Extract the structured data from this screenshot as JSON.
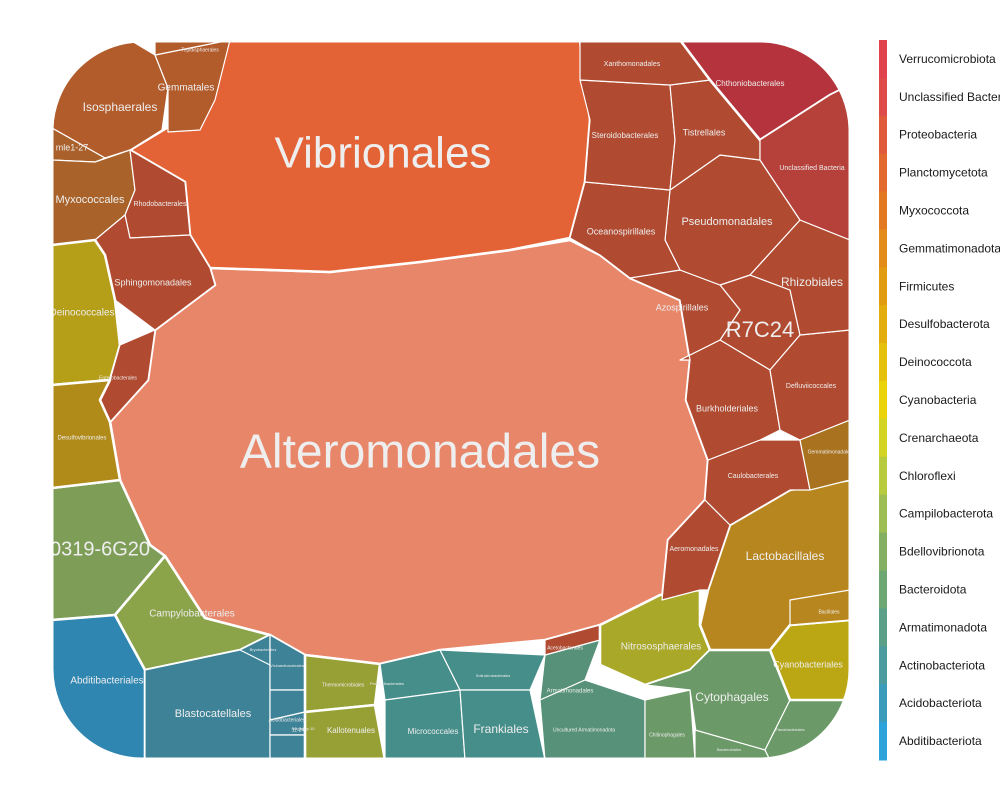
{
  "chart_data": {
    "type": "voronoi-treemap",
    "title": "",
    "legend": {
      "placement": "right",
      "entries": [
        {
          "label": "Verrucomicrobiota",
          "color": "#e0424e"
        },
        {
          "label": "Unclassified Bacteria",
          "color": "#df4b48"
        },
        {
          "label": "Proteobacteria",
          "color": "#e05a3c"
        },
        {
          "label": "Planctomycetota",
          "color": "#e36a2e"
        },
        {
          "label": "Myxococcota",
          "color": "#e37a22"
        },
        {
          "label": "Gemmatimonadota",
          "color": "#e38c1a"
        },
        {
          "label": "Firmicutes",
          "color": "#e29c12"
        },
        {
          "label": "Desulfobacterota",
          "color": "#e3ad0d"
        },
        {
          "label": "Deinococcota",
          "color": "#e6c10b"
        },
        {
          "label": "Cyanobacteria",
          "color": "#ebd30a"
        },
        {
          "label": "Crenarchaeota",
          "color": "#d3d423"
        },
        {
          "label": "Chloroflexi",
          "color": "#b8cb3e"
        },
        {
          "label": "Campilobacterota",
          "color": "#9cbe52"
        },
        {
          "label": "Bdellovibrionota",
          "color": "#83b063"
        },
        {
          "label": "Bacteroidota",
          "color": "#6da873"
        },
        {
          "label": "Armatimonadota",
          "color": "#5c9f88"
        },
        {
          "label": "Actinobacteriota",
          "color": "#4c9b9f"
        },
        {
          "label": "Acidobacteriota",
          "color": "#3a9bba"
        },
        {
          "label": "Abditibacteriota",
          "color": "#2ea2da"
        }
      ]
    },
    "cells": [
      {
        "label": "Alteromonadales",
        "phylum": "Proteobacteria",
        "color": "#e8866a",
        "size": "xl"
      },
      {
        "label": "Vibrionales",
        "phylum": "Proteobacteria",
        "color": "#e36336",
        "size": "lg"
      },
      {
        "label": "R7C24",
        "phylum": "Proteobacteria",
        "color": "#b04a30",
        "size": "md"
      },
      {
        "label": "0319-6G20",
        "phylum": "Bdellovibrionota",
        "color": "#7e9e58",
        "size": "md"
      },
      {
        "label": "Isosphaerales",
        "phylum": "Planctomycetota",
        "color": "#b25c2c",
        "size": "sm"
      },
      {
        "label": "Gemmatales",
        "phylum": "Planctomycetota",
        "color": "#b25c2c",
        "size": "xs"
      },
      {
        "label": "Tepidisphaerales",
        "phylum": "Planctomycetota",
        "color": "#b25c2c",
        "size": "xxs"
      },
      {
        "label": "mle1-27",
        "phylum": "Myxococcota",
        "color": "#a9602a",
        "size": "xs"
      },
      {
        "label": "Myxococcales",
        "phylum": "Myxococcota",
        "color": "#a9632a",
        "size": "sm"
      },
      {
        "label": "Rhodobacterales",
        "phylum": "Proteobacteria",
        "color": "#b04a30",
        "size": "xxs"
      },
      {
        "label": "Sphingomonadales",
        "phylum": "Proteobacteria",
        "color": "#b04a30",
        "size": "xs"
      },
      {
        "label": "Deinococcales",
        "phylum": "Deinococcota",
        "color": "#b59e18",
        "size": "sm"
      },
      {
        "label": "Enterobacterales",
        "phylum": "Proteobacteria",
        "color": "#b04a30",
        "size": "xxs"
      },
      {
        "label": "Desulfovibrionales",
        "phylum": "Desulfobacterota",
        "color": "#b08b1a",
        "size": "xxs"
      },
      {
        "label": "Campylobacterales",
        "phylum": "Campilobacterota",
        "color": "#8ba349",
        "size": "xs"
      },
      {
        "label": "Abditibacteriales",
        "phylum": "Abditibacteriota",
        "color": "#2e86b1",
        "size": "xs"
      },
      {
        "label": "Blastocatellales",
        "phylum": "Acidobacteriota",
        "color": "#3d8296",
        "size": "sm"
      },
      {
        "label": "Bryobacterales",
        "phylum": "Acidobacteriota",
        "color": "#3d8296",
        "size": "xxs"
      },
      {
        "label": "Vicinamibacterales",
        "phylum": "Acidobacteriota",
        "color": "#3d8296",
        "size": "xxs"
      },
      {
        "label": "Acidobacteriales",
        "phylum": "Acidobacteriota",
        "color": "#3d8296",
        "size": "xxs"
      },
      {
        "label": "Subgroup 10",
        "phylum": "Acidobacteriota",
        "color": "#3d8296",
        "size": "xxs"
      },
      {
        "label": "11-24",
        "phylum": "Acidobacteriota",
        "color": "#3d8296",
        "size": "xxs"
      },
      {
        "label": "Thermomicrobiales",
        "phylum": "Chloroflexi",
        "color": "#97a035",
        "size": "xxs"
      },
      {
        "label": "Kallotenuales",
        "phylum": "Chloroflexi",
        "color": "#97a035",
        "size": "xs"
      },
      {
        "label": "Propionibacteriales",
        "phylum": "Actinobacteriota",
        "color": "#468e8a",
        "size": "xxs"
      },
      {
        "label": "Micrococcales",
        "phylum": "Actinobacteriota",
        "color": "#468e8a",
        "size": "xs"
      },
      {
        "label": "Solirubrobacterales",
        "phylum": "Actinobacteriota",
        "color": "#468e8a",
        "size": "xxs"
      },
      {
        "label": "Frankiales",
        "phylum": "Actinobacteriota",
        "color": "#468e8a",
        "size": "sm"
      },
      {
        "label": "Armatimonadales",
        "phylum": "Armatimonadota",
        "color": "#57917a",
        "size": "xxs"
      },
      {
        "label": "Uncultured Armatimonadota",
        "phylum": "Armatimonadota",
        "color": "#57917a",
        "size": "xxs"
      },
      {
        "label": "Acetobacterales",
        "phylum": "Proteobacteria",
        "color": "#b04a30",
        "size": "xxs"
      },
      {
        "label": "Nitrososphaerales",
        "phylum": "Crenarchaeota",
        "color": "#aaa828",
        "size": "xs"
      },
      {
        "label": "Chitinophagales",
        "phylum": "Bacteroidota",
        "color": "#6b9a68",
        "size": "xxs"
      },
      {
        "label": "Cytophagales",
        "phylum": "Bacteroidota",
        "color": "#6b9a68",
        "size": "sm"
      },
      {
        "label": "Bacteroidales",
        "phylum": "Bacteroidota",
        "color": "#6b9a68",
        "size": "xxs"
      },
      {
        "label": "Flavobacteriales",
        "phylum": "Bacteroidota",
        "color": "#6b9a68",
        "size": "xxs"
      },
      {
        "label": "Cyanobacteriales",
        "phylum": "Cyanobacteria",
        "color": "#bba713",
        "size": "xs"
      },
      {
        "label": "Lactobacillales",
        "phylum": "Firmicutes",
        "color": "#b8861f",
        "size": "sm"
      },
      {
        "label": "Bacillales",
        "phylum": "Firmicutes",
        "color": "#b8861f",
        "size": "xxs"
      },
      {
        "label": "Aeromonadales",
        "phylum": "Proteobacteria",
        "color": "#b04a30",
        "size": "xxs"
      },
      {
        "label": "Caulobacterales",
        "phylum": "Proteobacteria",
        "color": "#b04a30",
        "size": "xxs"
      },
      {
        "label": "Burkholderiales",
        "phylum": "Proteobacteria",
        "color": "#b04a30",
        "size": "xs"
      },
      {
        "label": "Defluviicoccales",
        "phylum": "Proteobacteria",
        "color": "#b04a30",
        "size": "xxs"
      },
      {
        "label": "Gemmatimonadales",
        "phylum": "Gemmatimonadota",
        "color": "#a8721f",
        "size": "xxs"
      },
      {
        "label": "Azospirillales",
        "phylum": "Proteobacteria",
        "color": "#b04a30",
        "size": "xs"
      },
      {
        "label": "Rhizobiales",
        "phylum": "Proteobacteria",
        "color": "#b04a30",
        "size": "sm"
      },
      {
        "label": "Pseudomonadales",
        "phylum": "Proteobacteria",
        "color": "#b04a30",
        "size": "sm"
      },
      {
        "label": "Oceanospirillales",
        "phylum": "Proteobacteria",
        "color": "#b04a30",
        "size": "xs"
      },
      {
        "label": "Steroidobacterales",
        "phylum": "Proteobacteria",
        "color": "#b04a30",
        "size": "xs"
      },
      {
        "label": "Tistrellales",
        "phylum": "Proteobacteria",
        "color": "#b04a30",
        "size": "xs"
      },
      {
        "label": "Xanthomonadales",
        "phylum": "Proteobacteria",
        "color": "#b04a30",
        "size": "xxs"
      },
      {
        "label": "Chthoniobacterales",
        "phylum": "Verrucomicrobiota",
        "color": "#b5333c",
        "size": "xs"
      },
      {
        "label": "Unclassified Bacteria",
        "phylum": "Unclassified Bacteria",
        "color": "#b5413a",
        "size": "xs"
      }
    ]
  }
}
